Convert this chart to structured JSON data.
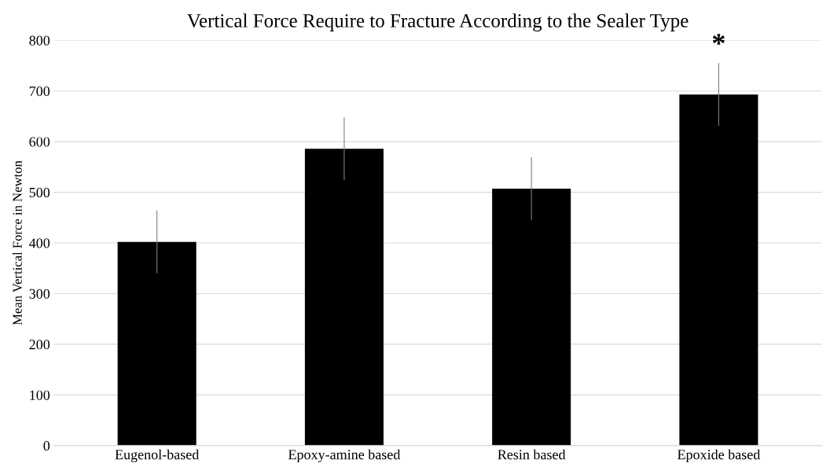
{
  "chart_data": {
    "type": "bar",
    "title": "Vertical Force Require to Fracture According to the Sealer Type",
    "ylabel": "Mean Vertical Force in Newton",
    "categories": [
      "Eugenol-based",
      "Epoxy-amine based",
      "Resin based",
      "Epoxide based"
    ],
    "values": [
      402,
      586,
      507,
      693
    ],
    "errors": [
      62,
      62,
      62,
      62
    ],
    "color": "#000000",
    "ylim": [
      0,
      800
    ],
    "yticks": [
      0,
      100,
      200,
      300,
      400,
      500,
      600,
      700,
      800
    ],
    "grid": "y",
    "annotations": [
      "*"
    ]
  }
}
